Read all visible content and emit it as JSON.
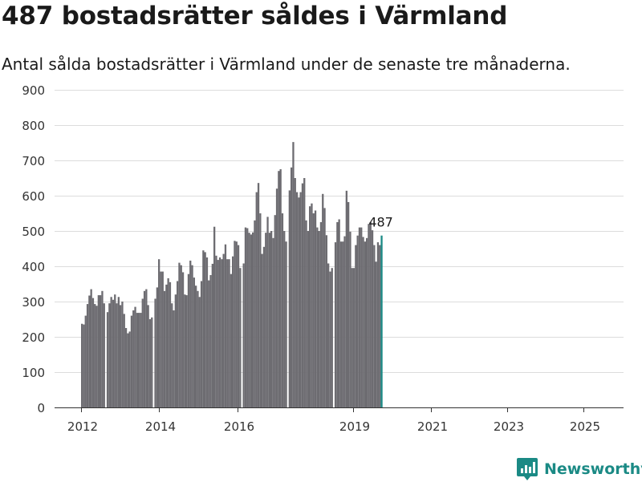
{
  "header": {
    "title": "487 bostadsrätter såldes i Värmland",
    "subtitle": "Antal sålda bostadsrätter i Värmland under de senaste tre månaderna."
  },
  "brand": {
    "name": "Newsworthy",
    "icon": "newsworthy-logo-icon",
    "color": "#1b8a85"
  },
  "chart_data": {
    "type": "bar",
    "title": "487 bostadsrätter såldes i Värmland",
    "subtitle": "Antal sålda bostadsrätter i Värmland under de senaste tre månaderna.",
    "xlabel": "",
    "ylabel": "",
    "ylim": [
      0,
      900
    ],
    "yticks": [
      0,
      100,
      200,
      300,
      400,
      500,
      600,
      700,
      800,
      900
    ],
    "xticks": [
      "2012",
      "2014",
      "2016",
      "2019",
      "2021",
      "2023",
      "2025"
    ],
    "grid": true,
    "bar_color": "#6d6c71",
    "highlight_color": "#1b8a85",
    "highlight_label": "487",
    "segments": [
      [
        237,
        235,
        260,
        293,
        317,
        335,
        310,
        293,
        288,
        318,
        318,
        330,
        295
      ],
      [
        270,
        295,
        313,
        305,
        320,
        295,
        313,
        290,
        300,
        265,
        225,
        210,
        215,
        260,
        275,
        285,
        268,
        268,
        268,
        308,
        330,
        335,
        290,
        250,
        255
      ],
      [
        308,
        340,
        420,
        385,
        385,
        330,
        348,
        366,
        355,
        295,
        275,
        320,
        358,
        410,
        403,
        383,
        320,
        318,
        378,
        416,
        403,
        368,
        345,
        330,
        313,
        358,
        445,
        440,
        425,
        360,
        375,
        407,
        512,
        430,
        418,
        425,
        420,
        435,
        462,
        420,
        420,
        378,
        428,
        472,
        470,
        460,
        395
      ],
      [
        408,
        510,
        508,
        495,
        490,
        496,
        530,
        610,
        636,
        550,
        435,
        455,
        495,
        540,
        495,
        500,
        480,
        545,
        620,
        670,
        675,
        550,
        500,
        470
      ],
      [
        615,
        680,
        752,
        650,
        610,
        595,
        610,
        635,
        650,
        530,
        500,
        570,
        578,
        550,
        558,
        510,
        500,
        525,
        605,
        565,
        488,
        408,
        385,
        395
      ],
      [
        468,
        525,
        533,
        470,
        470,
        485,
        614,
        582,
        498,
        395,
        395,
        460,
        487,
        510,
        510,
        483,
        470,
        480,
        520,
        525,
        502,
        460,
        413,
        468,
        460,
        487
      ]
    ]
  }
}
